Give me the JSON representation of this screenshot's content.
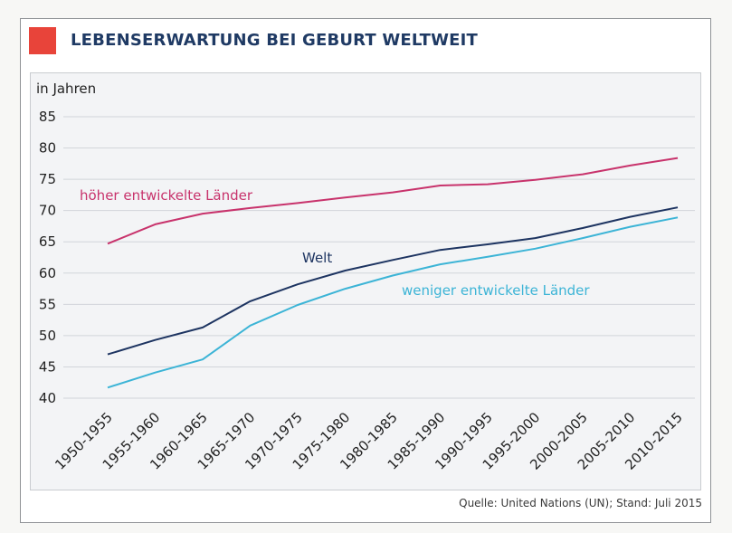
{
  "chart_data": {
    "type": "line",
    "title": "LEBENSERWARTUNG BEI GEBURT WELTWEIT",
    "ylabel": "in Jahren",
    "xlabel": "",
    "ylim": [
      40,
      85
    ],
    "yticks": [
      40,
      45,
      50,
      55,
      60,
      65,
      70,
      75,
      80,
      85
    ],
    "categories": [
      "1950-1955",
      "1955-1960",
      "1960-1965",
      "1965-1970",
      "1970-1975",
      "1975-1980",
      "1980-1985",
      "1985-1990",
      "1990-1995",
      "1995-2000",
      "2000-2005",
      "2005-2010",
      "2010-2015"
    ],
    "grid": true,
    "source": "Quelle: United Nations (UN); Stand: Juli 2015",
    "series": [
      {
        "name": "höher entwickelte Länder",
        "color": "#c8336c",
        "values": [
          64.7,
          67.8,
          69.5,
          70.4,
          71.2,
          72.1,
          72.9,
          74.0,
          74.2,
          74.9,
          75.8,
          77.2,
          78.4
        ]
      },
      {
        "name": "Welt",
        "color": "#1d3461",
        "values": [
          47.0,
          49.3,
          51.3,
          55.5,
          58.2,
          60.4,
          62.1,
          63.7,
          64.6,
          65.6,
          67.2,
          69.0,
          70.5
        ]
      },
      {
        "name": "weniger entwickelte Länder",
        "color": "#3cb4d6",
        "values": [
          41.7,
          44.1,
          46.2,
          51.6,
          54.9,
          57.5,
          59.6,
          61.4,
          62.6,
          63.9,
          65.6,
          67.4,
          68.9
        ]
      }
    ]
  }
}
